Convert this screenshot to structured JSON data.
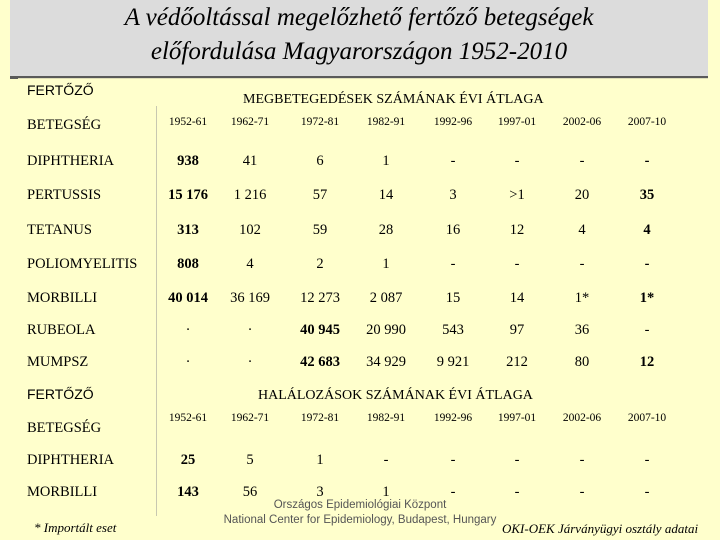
{
  "title": {
    "line1": "A védőoltással megelőzhető fertőző betegségek",
    "line2": "előfordulása Magyarországon 1952-2010"
  },
  "header": {
    "fertozo": "FERTŐZŐ",
    "betegseg": "BETEGSÉG"
  },
  "morbidity": {
    "caption": "MEGBETEGEDÉSEK SZÁMÁNAK ÉVI ÁTLAGA",
    "columns": [
      "1952-61",
      "1962-71",
      "1972-81",
      "1982-91",
      "1992-96",
      "1997-01",
      "2002-06",
      "2007-10"
    ],
    "rows": [
      {
        "disease": "DIPHTHERIA",
        "values": [
          "938",
          "41",
          "6",
          "1",
          "-",
          "-",
          "-",
          "-"
        ]
      },
      {
        "disease": "PERTUSSIS",
        "values": [
          "15 176",
          "1 216",
          "57",
          "14",
          "3",
          ">1",
          "20",
          "35"
        ]
      },
      {
        "disease": "TETANUS",
        "values": [
          "313",
          "102",
          "59",
          "28",
          "16",
          "12",
          "4",
          "4"
        ]
      },
      {
        "disease": "POLIOMYELITIS",
        "values": [
          "808",
          "4",
          "2",
          "1",
          "-",
          "-",
          "-",
          "-"
        ]
      },
      {
        "disease": "MORBILLI",
        "values": [
          "40 014",
          "36 169",
          "12 273",
          "2 087",
          "15",
          "14",
          "1*",
          "1*"
        ]
      },
      {
        "disease": "RUBEOLA",
        "values": [
          "·",
          "·",
          "40 945",
          "20 990",
          "543",
          "97",
          "36",
          "-"
        ]
      },
      {
        "disease": "MUMPSZ",
        "values": [
          "·",
          "·",
          "42 683",
          "34 929",
          "9 921",
          "212",
          "80",
          "12"
        ]
      }
    ]
  },
  "mortality": {
    "caption": "HALÁLOZÁSOK SZÁMÁNAK ÉVI ÁTLAGA",
    "columns": [
      "1952-61",
      "1962-71",
      "1972-81",
      "1982-91",
      "1992-96",
      "1997-01",
      "2002-06",
      "2007-10"
    ],
    "rows": [
      {
        "disease": "DIPHTHERIA",
        "values": [
          "25",
          "5",
          "1",
          "-",
          "-",
          "-",
          "-",
          "-"
        ]
      },
      {
        "disease": "MORBILLI",
        "values": [
          "143",
          "56",
          "3",
          "1",
          "-",
          "-",
          "-",
          "-"
        ]
      }
    ]
  },
  "footnote": "* Importált eset",
  "source": {
    "line1": "Országos Epidemiológiai Központ",
    "line2": "National Center for Epidemiology, Budapest, Hungary"
  },
  "credit": "OKI-OEK Járványügyi osztály adatai"
}
